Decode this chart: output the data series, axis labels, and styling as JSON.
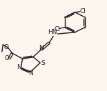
{
  "bg_color": "#fdf6ee",
  "line_color": "#1a1a1a",
  "lw": 1.0,
  "fs": 6.5,
  "xlim": [
    0,
    1.0
  ],
  "ylim": [
    0,
    1.0
  ],
  "figsize": [
    1.55,
    1.32
  ],
  "dpi": 100
}
